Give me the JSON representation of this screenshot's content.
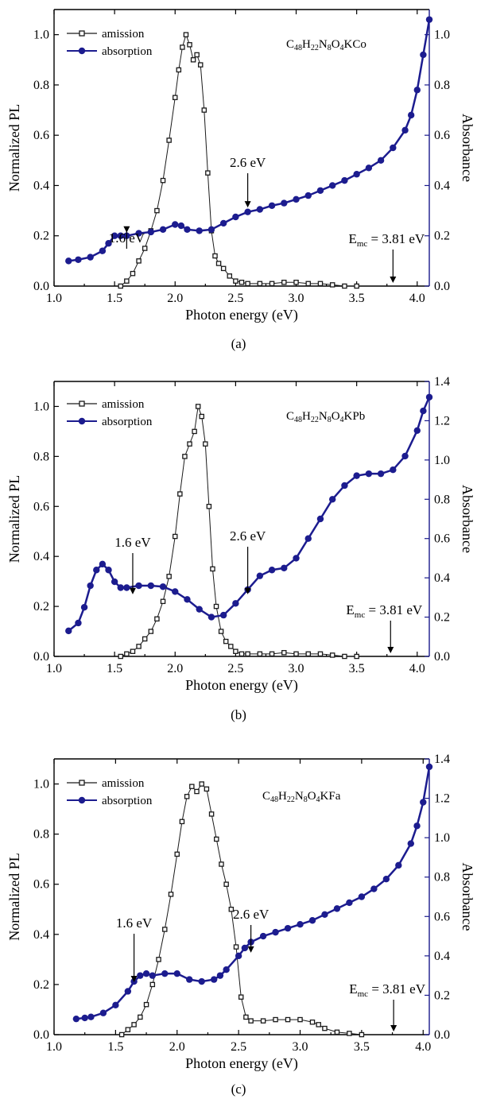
{
  "colors": {
    "emission": "#1a1a1a",
    "absorption": "#1c1c8f",
    "right_axis": "#1a1a8c"
  },
  "chart_data": [
    {
      "type": "scatter",
      "panel_label": "(a)",
      "formula": {
        "parts": [
          {
            "t": "C",
            "sub": false
          },
          {
            "t": "48",
            "sub": true
          },
          {
            "t": "H",
            "sub": false
          },
          {
            "t": "22",
            "sub": true
          },
          {
            "t": "N",
            "sub": false
          },
          {
            "t": "8",
            "sub": true
          },
          {
            "t": "O",
            "sub": false
          },
          {
            "t": "4",
            "sub": true
          },
          {
            "t": "KCo",
            "sub": false
          }
        ]
      },
      "xlabel": "Photon energy (eV)",
      "ylabel": "Normalized PL",
      "y2label": "Absorbance",
      "xlim": [
        1.0,
        4.1
      ],
      "ylim": [
        0.0,
        1.1
      ],
      "y2lim": [
        0.0,
        1.1
      ],
      "xticks": [
        "1.0",
        "1.5",
        "2.0",
        "2.5",
        "3.0",
        "3.5",
        "4.0"
      ],
      "yticks": [
        "0.0",
        "0.2",
        "0.4",
        "0.6",
        "0.8",
        "1.0"
      ],
      "y2ticks": [
        "0.0",
        "0.2",
        "0.4",
        "0.6",
        "0.8",
        "1.0"
      ],
      "legend": [
        "amission",
        "absorption"
      ],
      "annotations": [
        {
          "text": "1.6 eV",
          "x": 1.6,
          "arrow_to": 0.2
        },
        {
          "text": "2.6 eV",
          "x": 2.6,
          "arrow_to": 0.3
        },
        {
          "text": "E",
          "sub": "mc",
          "rest": " = 3.81 eV",
          "x": 3.8,
          "arrow_to": 0.0
        }
      ],
      "series": [
        {
          "name": "amission",
          "axis": "left",
          "marker": "square",
          "x": [
            1.55,
            1.6,
            1.65,
            1.7,
            1.75,
            1.8,
            1.85,
            1.9,
            1.95,
            2.0,
            2.03,
            2.06,
            2.09,
            2.12,
            2.15,
            2.18,
            2.21,
            2.24,
            2.27,
            2.3,
            2.33,
            2.36,
            2.4,
            2.45,
            2.5,
            2.55,
            2.6,
            2.7,
            2.8,
            2.9,
            3.0,
            3.1,
            3.2,
            3.3,
            3.4,
            3.5
          ],
          "y": [
            0.0,
            0.02,
            0.05,
            0.1,
            0.15,
            0.22,
            0.3,
            0.42,
            0.58,
            0.75,
            0.86,
            0.95,
            1.0,
            0.96,
            0.9,
            0.92,
            0.88,
            0.7,
            0.45,
            0.22,
            0.12,
            0.09,
            0.07,
            0.04,
            0.02,
            0.015,
            0.01,
            0.01,
            0.01,
            0.015,
            0.015,
            0.01,
            0.01,
            0.005,
            0.0,
            0.0
          ]
        },
        {
          "name": "absorption",
          "axis": "right",
          "marker": "circle",
          "x": [
            1.12,
            1.2,
            1.3,
            1.4,
            1.45,
            1.5,
            1.55,
            1.6,
            1.7,
            1.8,
            1.9,
            2.0,
            2.05,
            2.1,
            2.2,
            2.3,
            2.4,
            2.5,
            2.6,
            2.7,
            2.8,
            2.9,
            3.0,
            3.1,
            3.2,
            3.3,
            3.4,
            3.5,
            3.6,
            3.7,
            3.8,
            3.9,
            3.95,
            4.0,
            4.05,
            4.1
          ],
          "y": [
            0.1,
            0.105,
            0.115,
            0.14,
            0.17,
            0.2,
            0.2,
            0.2,
            0.21,
            0.215,
            0.225,
            0.245,
            0.24,
            0.225,
            0.22,
            0.225,
            0.25,
            0.275,
            0.295,
            0.305,
            0.32,
            0.33,
            0.345,
            0.36,
            0.38,
            0.4,
            0.42,
            0.445,
            0.47,
            0.5,
            0.55,
            0.62,
            0.68,
            0.78,
            0.92,
            1.06
          ]
        }
      ]
    },
    {
      "type": "scatter",
      "panel_label": "(b)",
      "formula": {
        "parts": [
          {
            "t": "C",
            "sub": false
          },
          {
            "t": "48",
            "sub": true
          },
          {
            "t": "H",
            "sub": false
          },
          {
            "t": "22",
            "sub": true
          },
          {
            "t": "N",
            "sub": false
          },
          {
            "t": "8",
            "sub": true
          },
          {
            "t": "O",
            "sub": false
          },
          {
            "t": "4",
            "sub": true
          },
          {
            "t": "KPb",
            "sub": false
          }
        ]
      },
      "xlabel": "Photon energy (eV)",
      "ylabel": "Normalized PL",
      "y2label": "Absorbance",
      "xlim": [
        1.0,
        4.1
      ],
      "ylim": [
        0.0,
        1.1
      ],
      "y2lim": [
        0.0,
        1.4
      ],
      "xticks": [
        "1.0",
        "1.5",
        "2.0",
        "2.5",
        "3.0",
        "3.5",
        "4.0"
      ],
      "yticks": [
        "0.0",
        "0.2",
        "0.4",
        "0.6",
        "0.8",
        "1.0"
      ],
      "y2ticks": [
        "0.0",
        "0.2",
        "0.4",
        "0.6",
        "0.8",
        "1.0",
        "1.2",
        "1.4"
      ],
      "legend": [
        "amission",
        "absorption"
      ],
      "annotations": [
        {
          "text": "1.6 eV",
          "x": 1.65,
          "arrow_to": 0.3
        },
        {
          "text": "2.6 eV",
          "x": 2.6,
          "arrow_to": 0.3
        },
        {
          "text": "E",
          "sub": "mc",
          "rest": " = 3.81 eV",
          "x": 3.78,
          "arrow_to": 0.0
        }
      ],
      "series": [
        {
          "name": "amission",
          "axis": "left",
          "marker": "square",
          "x": [
            1.55,
            1.6,
            1.65,
            1.7,
            1.75,
            1.8,
            1.85,
            1.9,
            1.95,
            2.0,
            2.04,
            2.08,
            2.12,
            2.16,
            2.19,
            2.22,
            2.25,
            2.28,
            2.31,
            2.34,
            2.38,
            2.42,
            2.46,
            2.5,
            2.55,
            2.6,
            2.7,
            2.8,
            2.9,
            3.0,
            3.1,
            3.2,
            3.3,
            3.4,
            3.5
          ],
          "y": [
            0.0,
            0.01,
            0.02,
            0.04,
            0.07,
            0.1,
            0.15,
            0.22,
            0.32,
            0.48,
            0.65,
            0.8,
            0.85,
            0.9,
            1.0,
            0.96,
            0.85,
            0.6,
            0.35,
            0.2,
            0.1,
            0.06,
            0.04,
            0.02,
            0.01,
            0.01,
            0.01,
            0.01,
            0.015,
            0.01,
            0.01,
            0.01,
            0.005,
            0.0,
            0.0
          ]
        },
        {
          "name": "absorption",
          "axis": "right",
          "marker": "circle",
          "x": [
            1.12,
            1.2,
            1.25,
            1.3,
            1.35,
            1.4,
            1.45,
            1.5,
            1.55,
            1.6,
            1.7,
            1.8,
            1.9,
            2.0,
            2.1,
            2.2,
            2.3,
            2.4,
            2.5,
            2.6,
            2.7,
            2.8,
            2.9,
            3.0,
            3.1,
            3.2,
            3.3,
            3.4,
            3.5,
            3.6,
            3.7,
            3.8,
            3.9,
            4.0,
            4.05,
            4.1
          ],
          "y": [
            0.13,
            0.17,
            0.25,
            0.36,
            0.44,
            0.47,
            0.44,
            0.38,
            0.35,
            0.35,
            0.36,
            0.36,
            0.355,
            0.33,
            0.29,
            0.24,
            0.2,
            0.21,
            0.27,
            0.34,
            0.41,
            0.44,
            0.45,
            0.5,
            0.6,
            0.7,
            0.8,
            0.87,
            0.92,
            0.93,
            0.93,
            0.95,
            1.02,
            1.15,
            1.25,
            1.32
          ]
        }
      ]
    },
    {
      "type": "scatter",
      "panel_label": "(c)",
      "formula": {
        "parts": [
          {
            "t": "C",
            "sub": false
          },
          {
            "t": "48",
            "sub": true
          },
          {
            "t": "H",
            "sub": false
          },
          {
            "t": "22",
            "sub": true
          },
          {
            "t": "N",
            "sub": false
          },
          {
            "t": "8",
            "sub": true
          },
          {
            "t": "O",
            "sub": false
          },
          {
            "t": "4",
            "sub": true
          },
          {
            "t": "KFa",
            "sub": false
          }
        ]
      },
      "xlabel": "Photon energy (eV)",
      "ylabel": "Normalized PL",
      "y2label": "Absorbance",
      "xlim": [
        1.0,
        4.05
      ],
      "ylim": [
        0.0,
        1.1
      ],
      "y2lim": [
        0.0,
        1.4
      ],
      "xticks": [
        "1.0",
        "1.5",
        "2.0",
        "2.5",
        "3.0",
        "3.5",
        "4.0"
      ],
      "yticks": [
        "0.0",
        "0.2",
        "0.4",
        "0.6",
        "0.8",
        "1.0"
      ],
      "y2ticks": [
        "0.0",
        "0.2",
        "0.4",
        "0.6",
        "0.8",
        "1.0",
        "1.2",
        "1.4"
      ],
      "legend": [
        "amission",
        "absorption"
      ],
      "annotations": [
        {
          "text": "1.6 eV",
          "x": 1.65,
          "arrow_to": 0.25
        },
        {
          "text": "2.6 eV",
          "x": 2.6,
          "arrow_to": 0.4
        },
        {
          "text": "E",
          "sub": "mc",
          "rest": " = 3.81 eV",
          "x": 3.76,
          "arrow_to": 0.0
        }
      ],
      "series": [
        {
          "name": "amission",
          "axis": "left",
          "marker": "square",
          "x": [
            1.55,
            1.6,
            1.65,
            1.7,
            1.75,
            1.8,
            1.85,
            1.9,
            1.95,
            2.0,
            2.04,
            2.08,
            2.12,
            2.16,
            2.2,
            2.24,
            2.28,
            2.32,
            2.36,
            2.4,
            2.44,
            2.48,
            2.52,
            2.56,
            2.6,
            2.7,
            2.8,
            2.9,
            3.0,
            3.1,
            3.15,
            3.2,
            3.3,
            3.4,
            3.5
          ],
          "y": [
            0.0,
            0.02,
            0.04,
            0.07,
            0.12,
            0.2,
            0.3,
            0.42,
            0.56,
            0.72,
            0.85,
            0.95,
            0.99,
            0.97,
            1.0,
            0.98,
            0.88,
            0.78,
            0.68,
            0.6,
            0.5,
            0.35,
            0.15,
            0.07,
            0.055,
            0.055,
            0.06,
            0.06,
            0.06,
            0.05,
            0.04,
            0.025,
            0.01,
            0.005,
            0.0
          ]
        },
        {
          "name": "absorption",
          "axis": "right",
          "marker": "circle",
          "x": [
            1.18,
            1.25,
            1.3,
            1.4,
            1.5,
            1.6,
            1.65,
            1.7,
            1.75,
            1.8,
            1.9,
            2.0,
            2.1,
            2.2,
            2.3,
            2.35,
            2.4,
            2.5,
            2.55,
            2.6,
            2.7,
            2.8,
            2.9,
            3.0,
            3.1,
            3.2,
            3.3,
            3.4,
            3.5,
            3.6,
            3.7,
            3.8,
            3.9,
            3.95,
            4.0,
            4.05
          ],
          "y": [
            0.08,
            0.085,
            0.09,
            0.11,
            0.15,
            0.22,
            0.27,
            0.3,
            0.31,
            0.3,
            0.31,
            0.31,
            0.28,
            0.27,
            0.28,
            0.3,
            0.33,
            0.4,
            0.44,
            0.47,
            0.5,
            0.52,
            0.54,
            0.56,
            0.58,
            0.61,
            0.64,
            0.67,
            0.7,
            0.74,
            0.79,
            0.86,
            0.97,
            1.06,
            1.18,
            1.36
          ]
        }
      ]
    }
  ]
}
